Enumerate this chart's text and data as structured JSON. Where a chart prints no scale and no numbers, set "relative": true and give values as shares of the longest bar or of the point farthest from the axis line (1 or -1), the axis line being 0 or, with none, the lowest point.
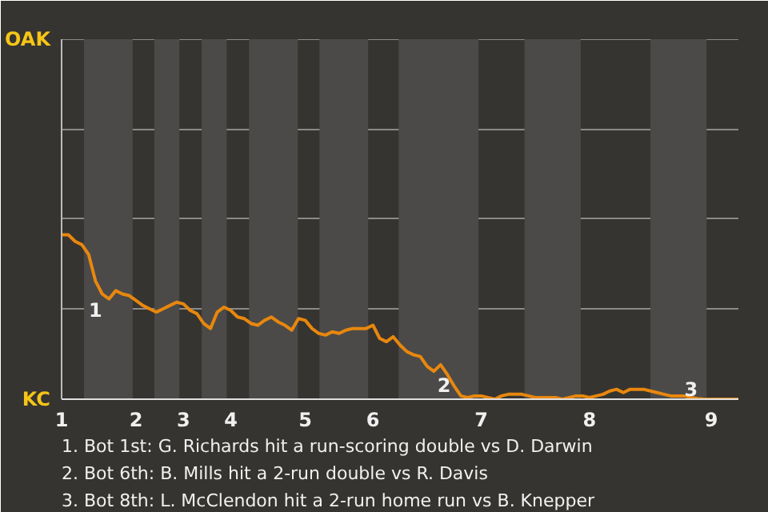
{
  "chart_data": {
    "type": "line",
    "relative": true,
    "ref_lines": [
      {
        "axis": "y",
        "value": 0.55,
        "color": "#8a8a88"
      },
      {
        "axis": "y",
        "value": 1.1,
        "color": "#8a8a88"
      },
      {
        "axis": "y",
        "value": 1.64,
        "color": "#8a8a88"
      },
      {
        "axis": "y",
        "value": 2.19,
        "color": "#8a8a88"
      }
    ],
    "categories": [
      "1",
      null,
      null,
      null,
      null,
      null,
      null,
      null,
      null,
      null,
      null,
      "2",
      null,
      null,
      null,
      null,
      null,
      null,
      "3",
      null,
      null,
      null,
      null,
      null,
      null,
      "4",
      null,
      null,
      null,
      null,
      null,
      null,
      null,
      null,
      null,
      null,
      "5",
      null,
      null,
      null,
      null,
      null,
      null,
      null,
      null,
      null,
      "6",
      null,
      null,
      null,
      null,
      null,
      null,
      null,
      null,
      null,
      null,
      null,
      null,
      null,
      null,
      null,
      "7",
      null,
      null,
      null,
      null,
      null,
      null,
      null,
      null,
      null,
      null,
      null,
      null,
      null,
      null,
      null,
      "8",
      null,
      null,
      null,
      null,
      null,
      null,
      null,
      null,
      null,
      null,
      null,
      null,
      null,
      null,
      null,
      null,
      null,
      "9",
      null,
      null,
      null,
      null
    ],
    "series": [
      {
        "color": "#e8870e",
        "values": [
          1,
          1,
          0.96,
          0.94,
          0.88,
          0.72,
          0.64,
          0.61,
          0.66,
          0.64,
          0.63,
          0.6,
          0.57,
          0.55,
          0.53,
          0.55,
          0.57,
          0.59,
          0.58,
          0.54,
          0.52,
          0.46,
          0.43,
          0.53,
          0.56,
          0.54,
          0.5,
          0.49,
          0.46,
          0.45,
          0.48,
          0.5,
          0.47,
          0.45,
          0.42,
          0.49,
          0.48,
          0.43,
          0.4,
          0.39,
          0.41,
          0.4,
          0.42,
          0.43,
          0.43,
          0.43,
          0.45,
          0.37,
          0.35,
          0.38,
          0.33,
          0.29,
          0.27,
          0.26,
          0.2,
          0.17,
          0.21,
          0.15,
          0.08,
          0.02,
          0.01,
          0.02,
          0.02,
          0.01,
          0.0,
          0.02,
          0.03,
          0.03,
          0.03,
          0.02,
          0.01,
          0.01,
          0.01,
          0.01,
          0.0,
          0.01,
          0.02,
          0.02,
          0.01,
          0.02,
          0.03,
          0.05,
          0.06,
          0.04,
          0.06,
          0.06,
          0.06,
          0.05,
          0.04,
          0.03,
          0.02,
          0.02,
          0.02,
          0.01,
          0.004,
          0.0,
          0.0,
          0.0,
          0.0,
          0.0,
          0.0
        ]
      }
    ],
    "annotations": [
      "1",
      "2",
      "3",
      "OAK",
      "KC",
      "1. Bot 1st: G. Richards hit a run-scoring double vs D. Darwin",
      "2. Bot 6th: B. Mills hit a 2-run double vs R. Davis",
      "3. Bot 8th: L. McClendon hit a 2-run home run vs B. Knepper"
    ]
  }
}
